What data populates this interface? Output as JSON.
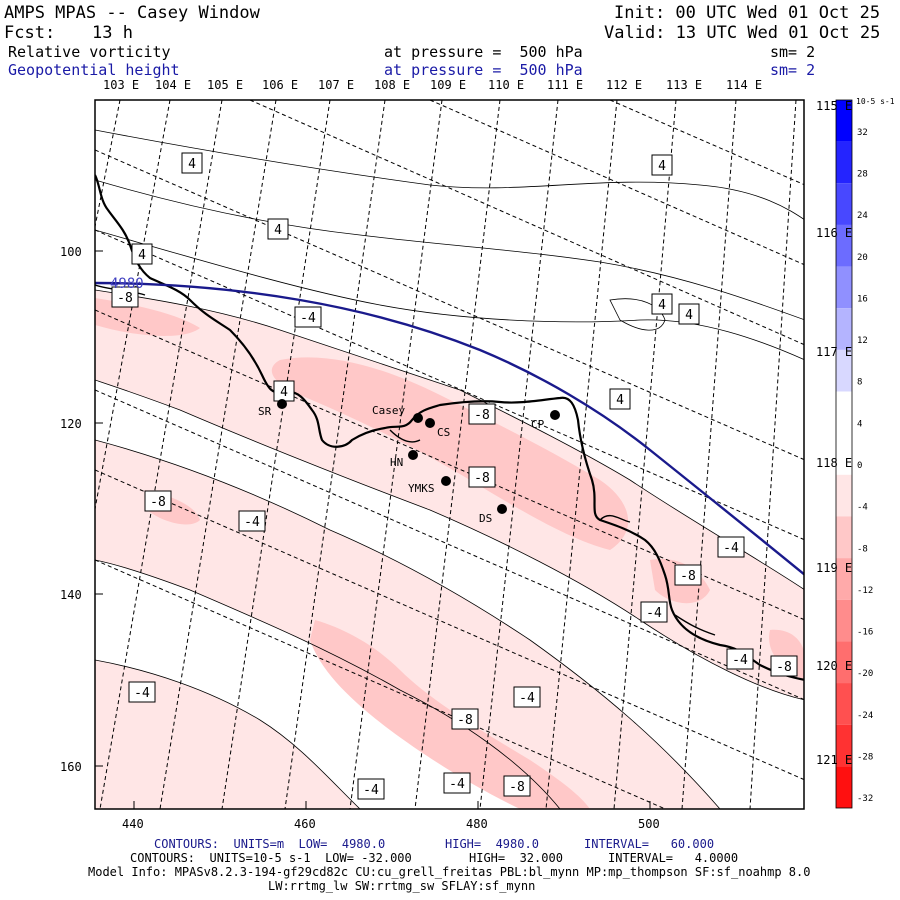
{
  "header": {
    "model_title": "AMPS MPAS -- Casey Window",
    "init": "Init: 00 UTC Wed 01 Oct 25",
    "fcst_label": "Fcst:",
    "fcst_value": "13 h",
    "valid": "Valid: 13 UTC Wed 01 Oct 25",
    "field1_name": "Relative vorticity",
    "field1_level": "at pressure =  500 hPa",
    "field1_sm": "sm= 2",
    "field2_name": "Geopotential height",
    "field2_level": "at pressure =  500 hPa",
    "field2_sm": "sm= 2"
  },
  "axes": {
    "lon_top": [
      "103 E",
      "104 E",
      "105 E",
      "106 E",
      "107 E",
      "108 E",
      "109 E",
      "110 E",
      "111 E",
      "112 E",
      "113 E",
      "114 E"
    ],
    "lon_right": [
      "115 E",
      "116 E",
      "117 E",
      "118 E",
      "119 E",
      "120 E",
      "121 E"
    ],
    "y_ticks": [
      "100",
      "120",
      "140",
      "160"
    ],
    "x_ticks": [
      "440",
      "460",
      "480",
      "500"
    ]
  },
  "colorbar": {
    "unit_label": "10-5 s-1",
    "labels": [
      "32",
      "28",
      "24",
      "20",
      "16",
      "12",
      "8",
      "4",
      "0",
      "-4",
      "-8",
      "-12",
      "-16",
      "-20",
      "-24",
      "-28",
      "-32"
    ],
    "colors": [
      "#0000ff",
      "#2424ff",
      "#4848ff",
      "#6c6cff",
      "#9090ff",
      "#b4b4ff",
      "#d8d8ff",
      "#ffffff",
      "#ffffff",
      "#ffe6e6",
      "#ffc8c8",
      "#ffaaaa",
      "#ff8c8c",
      "#ff6e6e",
      "#ff5050",
      "#ff3232",
      "#ff1010"
    ]
  },
  "stations": [
    {
      "name": "SR"
    },
    {
      "name": "Casey"
    },
    {
      "name": "CS"
    },
    {
      "name": "CP"
    },
    {
      "name": "HN"
    },
    {
      "name": "YMKS"
    },
    {
      "name": "DS"
    }
  ],
  "contour_labels": {
    "height": "4980",
    "vort": [
      "4",
      "4",
      "4",
      "4",
      "4",
      "4",
      "4",
      "4",
      "-4",
      "-8",
      "-4",
      "-8",
      "-8",
      "-8",
      "-4",
      "-4",
      "-8",
      "-4",
      "-4",
      "-8",
      "-4",
      "-8",
      "-4",
      "-4",
      "-4",
      "-8"
    ]
  },
  "footer": {
    "line1_a": "CONTOURS:  UNITS=m  LOW=  4980.0",
    "line1_b": "HIGH=  4980.0",
    "line1_c": "INTERVAL=   60.000",
    "line2_a": "CONTOURS:  UNITS=10-5 s-1  LOW= -32.000",
    "line2_b": "HIGH=  32.000",
    "line2_c": "INTERVAL=   4.0000",
    "model_info": "Model Info: MPASv8.2.3-194-gf29cd82c CU:cu_grell_freitas PBL:bl_mynn MP:mp_thompson SF:sf_noahmp 8.0",
    "model_info2": "LW:rrtmg_lw SW:rrtmg_sw SFLAY:sf_mynn"
  }
}
